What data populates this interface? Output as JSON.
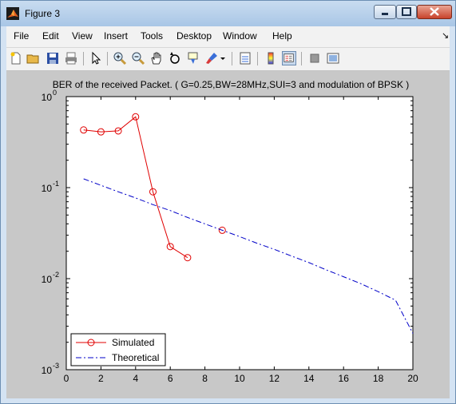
{
  "window": {
    "title": "Figure 3"
  },
  "menu": [
    "File",
    "Edit",
    "View",
    "Insert",
    "Tools",
    "Desktop",
    "Window",
    "Help"
  ],
  "menu_arrow": "↘",
  "toolbar_icons": [
    "new-figure-icon",
    "open-file-icon",
    "save-icon",
    "print-icon",
    "pointer-icon",
    "zoom-in-icon",
    "zoom-out-icon",
    "pan-icon",
    "rotate-3d-icon",
    "data-cursor-icon",
    "brush-icon",
    "brush-dropdown-icon",
    "link-plot-icon",
    "colorbar-icon",
    "legend-icon",
    "hide-plot-tools-icon",
    "show-plot-tools-icon"
  ],
  "chart_data": {
    "type": "line",
    "title": "BER of the received Packet. ( G=0.25,BW=28MHz,SUI=3 and modulation of BPSK )",
    "xlabel": "",
    "ylabel": "",
    "xlim": [
      0,
      20
    ],
    "ylim": [
      0.001,
      1
    ],
    "yscale": "log",
    "x_ticks": [
      0,
      2,
      4,
      6,
      8,
      10,
      12,
      14,
      16,
      18,
      20
    ],
    "y_ticks": [
      0.001,
      0.01,
      0.1,
      1
    ],
    "y_tick_labels": [
      {
        "base": "10",
        "exp": "-3"
      },
      {
        "base": "10",
        "exp": "-2"
      },
      {
        "base": "10",
        "exp": "-1"
      },
      {
        "base": "10",
        "exp": "0"
      }
    ],
    "grid": false,
    "legend_position": "bottom-left",
    "series": [
      {
        "name": "Simulated",
        "style": "line-circle",
        "color": "#e00000",
        "segments": [
          {
            "x": [
              1,
              2,
              3,
              4,
              5,
              6,
              7
            ],
            "y": [
              0.43,
              0.41,
              0.42,
              0.6,
              0.09,
              0.0225,
              0.017
            ]
          },
          {
            "x": [
              9
            ],
            "y": [
              0.034
            ]
          }
        ]
      },
      {
        "name": "Theoretical",
        "style": "dash-dot",
        "color": "#0000c8",
        "segments": [
          {
            "x": [
              1,
              2,
              3,
              4,
              5,
              6,
              7,
              8,
              9,
              10,
              11,
              12,
              13,
              14,
              15,
              16,
              17,
              18,
              19,
              20
            ],
            "y": [
              0.125,
              0.106,
              0.09,
              0.077,
              0.065,
              0.056,
              0.047,
              0.04,
              0.034,
              0.029,
              0.0245,
              0.021,
              0.0177,
              0.015,
              0.0125,
              0.0105,
              0.0088,
              0.0072,
              0.0058,
              0.0025
            ]
          }
        ]
      }
    ]
  }
}
